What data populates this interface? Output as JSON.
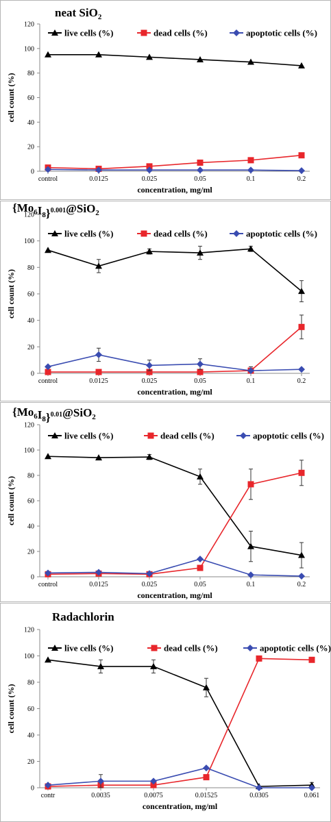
{
  "chart_data": [
    {
      "type": "line",
      "title": "neat SiO2",
      "title_parts": [
        {
          "t": "neat SiO"
        },
        {
          "t": "2",
          "s": "sub"
        }
      ],
      "xlabel": "concentration, mg/ml",
      "ylabel": "cell count (%)",
      "ylim": [
        0,
        120
      ],
      "yticks": [
        0,
        20,
        40,
        60,
        80,
        100,
        120
      ],
      "categories": [
        "control",
        "0.0125",
        "0.025",
        "0.05",
        "0.1",
        "0.2"
      ],
      "series": [
        {
          "name": "live cells (%)",
          "color": "#000000",
          "marker": "triangle",
          "values": [
            95,
            95,
            93,
            91,
            89,
            86
          ],
          "errors": [
            0,
            0,
            0,
            0,
            0,
            0
          ]
        },
        {
          "name": "dead cells (%)",
          "color": "#e8262b",
          "marker": "square",
          "values": [
            3,
            2,
            4,
            7,
            9,
            13
          ],
          "errors": [
            0,
            0,
            0,
            0,
            0,
            0
          ]
        },
        {
          "name": "apoptotic cells (%)",
          "color": "#3a4cb1",
          "marker": "diamond",
          "values": [
            1.5,
            1,
            1,
            1,
            1,
            0.5
          ],
          "errors": [
            0,
            0,
            0,
            0,
            0,
            0
          ]
        }
      ]
    },
    {
      "type": "line",
      "title": "{Mo6I8}0.001@SiO2",
      "title_parts": [
        {
          "t": "{Mo"
        },
        {
          "t": "6",
          "s": "sub"
        },
        {
          "t": "I"
        },
        {
          "t": "8",
          "s": "sub"
        },
        {
          "t": "}"
        },
        {
          "t": "0.001",
          "s": "sup"
        },
        {
          "t": "@SiO"
        },
        {
          "t": "2",
          "s": "sub"
        }
      ],
      "xlabel": "concentration, mg/ml",
      "ylabel": "cell count (%)",
      "ylim": [
        0,
        120
      ],
      "yticks": [
        0,
        20,
        40,
        60,
        80,
        100,
        120
      ],
      "categories": [
        "control",
        "0.0125",
        "0.025",
        "0.05",
        "0.1",
        "0.2"
      ],
      "series": [
        {
          "name": "live cells (%)",
          "color": "#000000",
          "marker": "triangle",
          "values": [
            93,
            81,
            92,
            91,
            94,
            62
          ],
          "errors": [
            0,
            5,
            2,
            5,
            2,
            8
          ]
        },
        {
          "name": "dead cells (%)",
          "color": "#e8262b",
          "marker": "square",
          "values": [
            1,
            1,
            1,
            1,
            2,
            35
          ],
          "errors": [
            0,
            0,
            0,
            0,
            3,
            9
          ]
        },
        {
          "name": "apoptotic cells (%)",
          "color": "#3a4cb1",
          "marker": "diamond",
          "values": [
            5,
            14,
            6,
            7,
            2,
            3
          ],
          "errors": [
            0,
            5,
            4,
            4,
            0,
            0
          ]
        }
      ]
    },
    {
      "type": "line",
      "title": "{Mo6I8}0.01@SiO2",
      "title_parts": [
        {
          "t": "{Mo"
        },
        {
          "t": "6",
          "s": "sub"
        },
        {
          "t": "I"
        },
        {
          "t": "8",
          "s": "sub"
        },
        {
          "t": "}"
        },
        {
          "t": "0.01",
          "s": "sup"
        },
        {
          "t": "@SiO"
        },
        {
          "t": "2",
          "s": "sub"
        }
      ],
      "xlabel": "concentration, mg/ml",
      "ylabel": "cell count (%)",
      "ylim": [
        0,
        120
      ],
      "yticks": [
        0,
        20,
        40,
        60,
        80,
        100,
        120
      ],
      "categories": [
        "control",
        "0.0125",
        "0.025",
        "0.05",
        "0.1",
        "0.2"
      ],
      "series": [
        {
          "name": "live cells (%)",
          "color": "#000000",
          "marker": "triangle",
          "values": [
            95,
            94,
            94.5,
            79,
            24,
            17
          ],
          "errors": [
            0,
            0,
            2,
            6,
            12,
            10
          ]
        },
        {
          "name": "dead cells (%)",
          "color": "#e8262b",
          "marker": "square",
          "values": [
            2,
            2.5,
            2,
            7,
            73,
            82
          ],
          "errors": [
            0,
            0,
            0,
            0,
            12,
            10
          ]
        },
        {
          "name": "apoptotic cells (%)",
          "color": "#3a4cb1",
          "marker": "diamond",
          "values": [
            3,
            3.5,
            2.5,
            14,
            1.5,
            0.5
          ],
          "errors": [
            0,
            0,
            0,
            0,
            0,
            0
          ]
        }
      ]
    },
    {
      "type": "line",
      "title": "Radachlorin",
      "title_parts": [
        {
          "t": "Radachlorin"
        }
      ],
      "xlabel": "concentration, mg/ml",
      "ylabel": "cell count (%)",
      "ylim": [
        0,
        120
      ],
      "yticks": [
        0,
        20,
        40,
        60,
        80,
        100,
        120
      ],
      "categories": [
        "contr",
        "0.0035",
        "0.0075",
        "0.01525",
        "0.0305",
        "0.061"
      ],
      "series": [
        {
          "name": "live cells (%)",
          "color": "#000000",
          "marker": "triangle",
          "values": [
            97,
            92,
            92,
            76,
            1,
            2
          ],
          "errors": [
            0,
            5,
            5,
            7,
            0,
            2
          ]
        },
        {
          "name": "dead cells (%)",
          "color": "#e8262b",
          "marker": "square",
          "values": [
            1,
            2,
            2,
            8,
            98,
            97
          ],
          "errors": [
            0,
            0,
            0,
            0,
            0,
            0
          ]
        },
        {
          "name": "apoptotic cells (%)",
          "color": "#3a4cb1",
          "marker": "diamond",
          "values": [
            2,
            5,
            5,
            15,
            0,
            0
          ],
          "errors": [
            0,
            5,
            0,
            0,
            0,
            0
          ]
        }
      ]
    }
  ]
}
